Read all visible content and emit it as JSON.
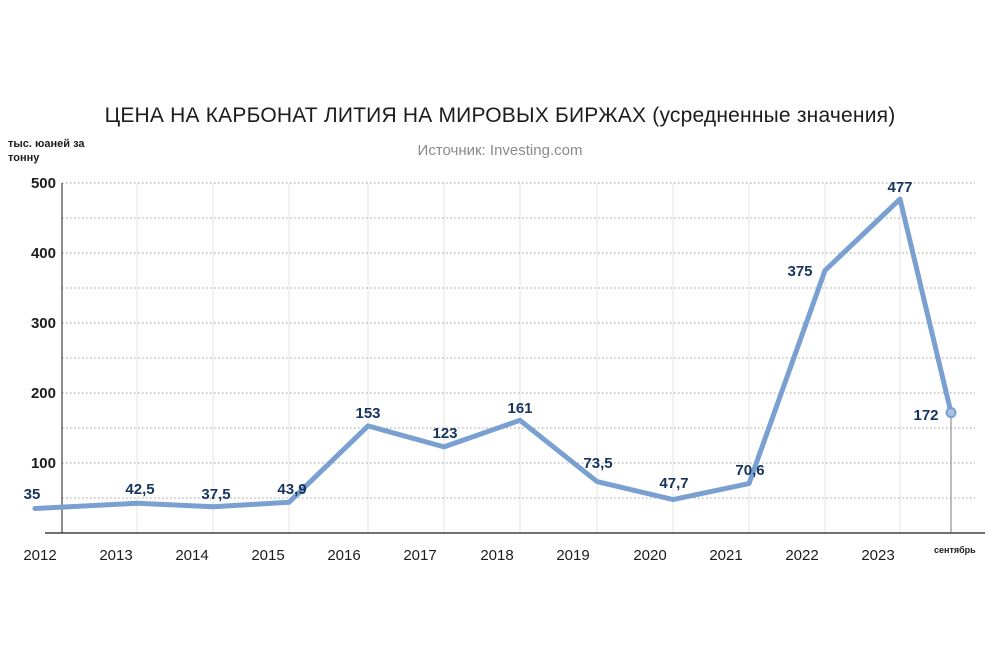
{
  "chart_data": {
    "type": "line",
    "title": "ЦЕНА НА КАРБОНАТ ЛИТИЯ НА МИРОВЫХ БИРЖАХ (усредненные значения)",
    "subtitle": "Источник: Investing.com",
    "ylabel": "тыс. юаней за тонну",
    "ylim": [
      0,
      500
    ],
    "yticks": [
      "100",
      "200",
      "300",
      "400",
      "500"
    ],
    "grid": true,
    "x": [
      "2012",
      "2013",
      "2014",
      "2015",
      "2016",
      "2017",
      "2018",
      "2019",
      "2020",
      "2021",
      "2022",
      "2023",
      "сентябрь"
    ],
    "series": [
      {
        "values": [
          35,
          42.5,
          37.5,
          43.9,
          153,
          123,
          161,
          73.5,
          47.7,
          70.6,
          375,
          477,
          172
        ],
        "labels": [
          "35",
          "42,5",
          "37,5",
          "43,9",
          "153",
          "123",
          "161",
          "73,5",
          "47,7",
          "70,6",
          "375",
          "477",
          "172"
        ]
      }
    ],
    "line_color": "#7a9fd1",
    "label_color": "#15345e"
  }
}
